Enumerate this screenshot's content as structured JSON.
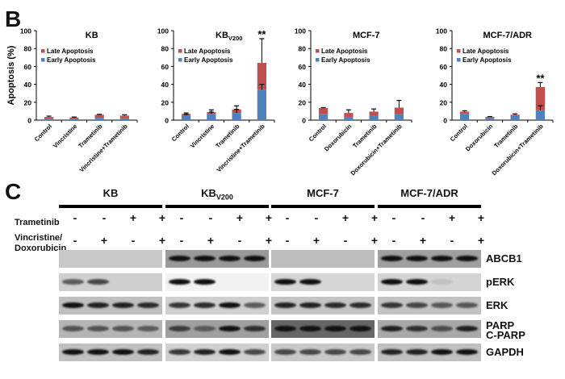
{
  "panel_b": {
    "letter": "B",
    "y_axis_label": "Apoptosis (%)",
    "legend": [
      "Late Apoptosis",
      "Early Apoptosis"
    ],
    "colors": {
      "late": "#c0504d",
      "early": "#4f81bd"
    }
  },
  "chart_data": [
    {
      "type": "bar",
      "stacked": true,
      "title": "KB",
      "ylabel": "Apoptosis (%)",
      "ylim": [
        0,
        100
      ],
      "yticks": [
        0,
        20,
        40,
        60,
        80,
        100
      ],
      "categories": [
        "Control",
        "Vincristine",
        "Trametinib",
        "Vincristine+Trametinib"
      ],
      "series": [
        {
          "name": "Early Apoptosis",
          "values": [
            1.5,
            1.5,
            2.5,
            2
          ]
        },
        {
          "name": "Late Apoptosis",
          "values": [
            2,
            1.5,
            3.5,
            3
          ]
        }
      ],
      "total_error": [
        1,
        0.5,
        0.5,
        1
      ],
      "annotations": []
    },
    {
      "type": "bar",
      "stacked": true,
      "title": "KBV200",
      "title_main": "KB",
      "title_sub": "V200",
      "ylabel": "",
      "ylim": [
        0,
        100
      ],
      "yticks": [
        0,
        20,
        40,
        60,
        80,
        100
      ],
      "categories": [
        "Control",
        "Vincristine",
        "Trametinib",
        "Vincristine+Trametinib"
      ],
      "series": [
        {
          "name": "Early Apoptosis",
          "values": [
            5.5,
            7,
            8,
            34
          ]
        },
        {
          "name": "Late Apoptosis",
          "values": [
            1.5,
            2,
            4,
            30
          ]
        }
      ],
      "early_error": [
        1,
        2,
        4,
        6
      ],
      "total_error": [
        1,
        2.5,
        4,
        27
      ],
      "annotations": [
        "",
        "",
        "",
        "**"
      ]
    },
    {
      "type": "bar",
      "stacked": true,
      "title": "MCF-7",
      "ylabel": "",
      "ylim": [
        0,
        100
      ],
      "yticks": [
        0,
        20,
        40,
        60,
        80,
        100
      ],
      "categories": [
        "Control",
        "Doxorubicin",
        "Trametinib",
        "Doxorubicin+Trametinib"
      ],
      "series": [
        {
          "name": "Early Apoptosis",
          "values": [
            6.5,
            3.5,
            5,
            6.5
          ]
        },
        {
          "name": "Late Apoptosis",
          "values": [
            7,
            4.5,
            4.5,
            7.5
          ]
        }
      ],
      "total_error": [
        0.5,
        3.5,
        3,
        8
      ],
      "annotations": []
    },
    {
      "type": "bar",
      "stacked": true,
      "title": "MCF-7/ADR",
      "ylabel": "",
      "ylim": [
        0,
        100
      ],
      "yticks": [
        0,
        20,
        40,
        60,
        80,
        100
      ],
      "categories": [
        "Control",
        "Doxorubicin",
        "Trametinib",
        "Doxorubicin+Trametinib"
      ],
      "series": [
        {
          "name": "Early Apoptosis",
          "values": [
            7,
            2.5,
            4.5,
            11
          ]
        },
        {
          "name": "Late Apoptosis",
          "values": [
            2.5,
            1,
            1.5,
            26
          ]
        }
      ],
      "early_error": [
        0,
        0,
        0,
        5
      ],
      "total_error": [
        1,
        0.5,
        1,
        5
      ],
      "annotations": [
        "",
        "",
        "",
        "**"
      ]
    }
  ],
  "panel_c": {
    "letter": "C",
    "groups": [
      {
        "name": "KB",
        "sub": ""
      },
      {
        "name": "KB",
        "sub": "V200"
      },
      {
        "name": "MCF-7",
        "sub": ""
      },
      {
        "name": "MCF-7/ADR",
        "sub": ""
      }
    ],
    "treatment_rows": [
      {
        "label": "Trametinib",
        "signs": [
          "-",
          "-",
          "+",
          "+"
        ]
      },
      {
        "label_line1": "Vincristine/",
        "label_line2": "Doxorubicin",
        "signs": [
          "-",
          "+",
          "-",
          "+"
        ]
      }
    ],
    "proteins": [
      "ABCB1",
      "pERK",
      "ERK",
      "PARP",
      "C-PARP",
      "GAPDH"
    ]
  }
}
